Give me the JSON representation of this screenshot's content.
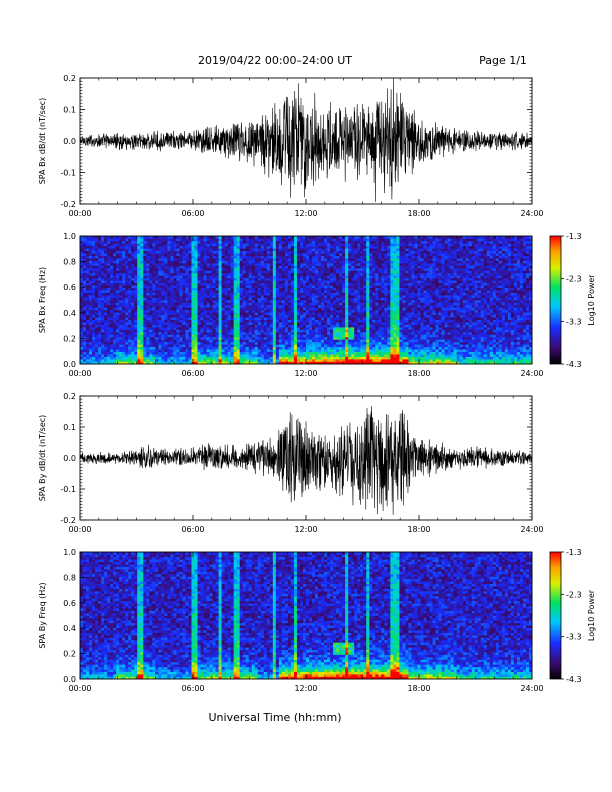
{
  "header": {
    "title": "2019/04/22  00:00–24:00 UT",
    "page": "Page 1/1"
  },
  "xlabel": "Universal Time (hh:mm)",
  "colors": {
    "waveform": "#000000",
    "background": "#ffffff"
  },
  "chart_data": [
    {
      "type": "line",
      "ylabel": "SPA Bx dB/dt (nT/sec)",
      "xlim": [
        "00:00",
        "24:00"
      ],
      "ylim": [
        -0.2,
        0.2
      ],
      "xticks": [
        "00:00",
        "06:00",
        "12:00",
        "18:00",
        "24:00"
      ],
      "yticks": [
        "-0.2",
        "-0.1",
        "0.0",
        "0.1",
        "0.2"
      ],
      "envelope": {
        "x_hours": [
          0,
          2,
          4,
          6,
          8,
          9.5,
          10.5,
          11,
          11.5,
          12,
          13,
          14,
          15,
          16,
          17,
          18,
          19,
          20,
          22,
          24
        ],
        "amplitude": [
          0.025,
          0.03,
          0.035,
          0.04,
          0.07,
          0.1,
          0.15,
          0.24,
          0.22,
          0.2,
          0.13,
          0.14,
          0.18,
          0.22,
          0.2,
          0.08,
          0.06,
          0.045,
          0.035,
          0.03
        ]
      }
    },
    {
      "type": "heatmap",
      "ylabel": "SPA Bx Freq (Hz)",
      "xlim": [
        "00:00",
        "24:00"
      ],
      "ylim": [
        0,
        1.0
      ],
      "xticks": [
        "00:00",
        "06:00",
        "12:00",
        "18:00",
        "24:00"
      ],
      "yticks": [
        "0.0",
        "0.2",
        "0.4",
        "0.6",
        "0.8",
        "1.0"
      ],
      "colorbar": {
        "label": "Log10 Power",
        "min": -4.3,
        "max": -1.3,
        "ticks": [
          "-1.3",
          "-2.3",
          "-3.3",
          "-4.3"
        ]
      }
    },
    {
      "type": "line",
      "ylabel": "SPA By dB/dt (nT/sec)",
      "xlim": [
        "00:00",
        "24:00"
      ],
      "ylim": [
        -0.2,
        0.2
      ],
      "xticks": [
        "00:00",
        "06:00",
        "12:00",
        "18:00",
        "24:00"
      ],
      "yticks": [
        "-0.2",
        "-0.1",
        "0.0",
        "0.1",
        "0.2"
      ],
      "envelope": {
        "x_hours": [
          0,
          2,
          3,
          3.5,
          4,
          6,
          7,
          8,
          9.5,
          10.5,
          11,
          12,
          13,
          14,
          15,
          16,
          17,
          18,
          19,
          20,
          22,
          24
        ],
        "amplitude": [
          0.02,
          0.025,
          0.03,
          0.06,
          0.03,
          0.04,
          0.06,
          0.05,
          0.06,
          0.1,
          0.18,
          0.15,
          0.12,
          0.14,
          0.2,
          0.2,
          0.18,
          0.08,
          0.06,
          0.045,
          0.035,
          0.025
        ]
      }
    },
    {
      "type": "heatmap",
      "ylabel": "SPA By Freq (Hz)",
      "xlim": [
        "00:00",
        "24:00"
      ],
      "ylim": [
        0,
        1.0
      ],
      "xticks": [
        "00:00",
        "06:00",
        "12:00",
        "18:00",
        "24:00"
      ],
      "yticks": [
        "0.0",
        "0.2",
        "0.4",
        "0.6",
        "0.8",
        "1.0"
      ],
      "colorbar": {
        "label": "Log10 Power",
        "min": -4.3,
        "max": -1.3,
        "ticks": [
          "-1.3",
          "-2.3",
          "-3.3",
          "-4.3"
        ]
      }
    }
  ]
}
